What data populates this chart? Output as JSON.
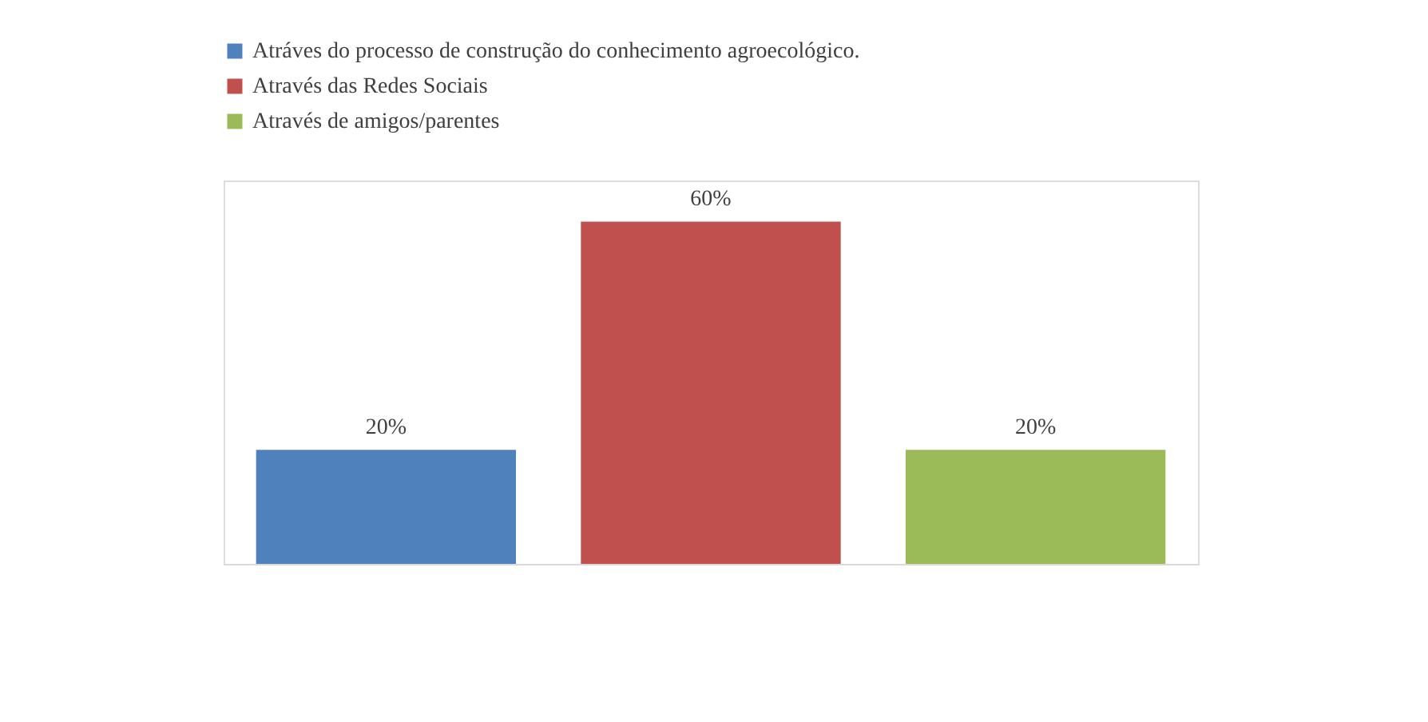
{
  "chart_data": {
    "type": "bar",
    "categories": [
      null
    ],
    "series": [
      {
        "name": "Atráves do processo de construção do conhecimento agroecológico.",
        "color": "#4f81bd",
        "values": [
          20
        ],
        "value_labels": [
          "20%"
        ]
      },
      {
        "name": "Através das Redes Sociais",
        "color": "#c0504d",
        "values": [
          60
        ],
        "value_labels": [
          "60%"
        ]
      },
      {
        "name": "Através de amigos/parentes",
        "color": "#9bbb59",
        "values": [
          20
        ],
        "value_labels": [
          "20%"
        ]
      }
    ],
    "legend": "top left",
    "grid": false
  }
}
